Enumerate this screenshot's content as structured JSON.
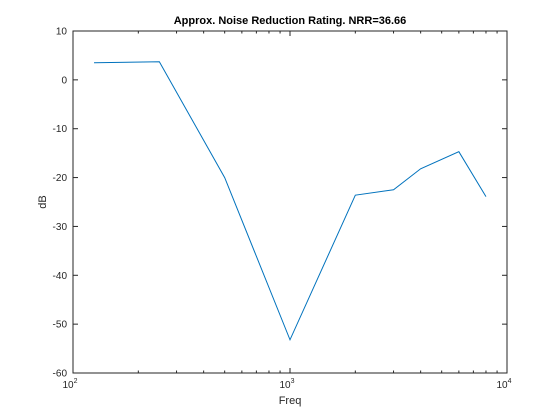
{
  "chart_data": {
    "type": "line",
    "title": "Approx. Noise Reduction Rating. NRR=36.66",
    "xlabel": "Freq",
    "ylabel": "dB",
    "xscale": "log",
    "xlim": [
      100,
      10000
    ],
    "ylim": [
      -60,
      10
    ],
    "grid": false,
    "legend": "none",
    "x_ticks": [
      {
        "base": "10",
        "exp": "2"
      },
      {
        "base": "10",
        "exp": "3"
      },
      {
        "base": "10",
        "exp": "4"
      }
    ],
    "y_ticks": [
      "10",
      "0",
      "-10",
      "-20",
      "-30",
      "-40",
      "-50",
      "-60"
    ],
    "series": [
      {
        "color": "#0072bd",
        "x": [
          125,
          250,
          500,
          1000,
          2000,
          3000,
          4000,
          6000,
          8000
        ],
        "y": [
          3.5,
          3.7,
          -20,
          -53.2,
          -23.6,
          -22.5,
          -18.2,
          -14.7,
          -23.9
        ]
      }
    ]
  }
}
